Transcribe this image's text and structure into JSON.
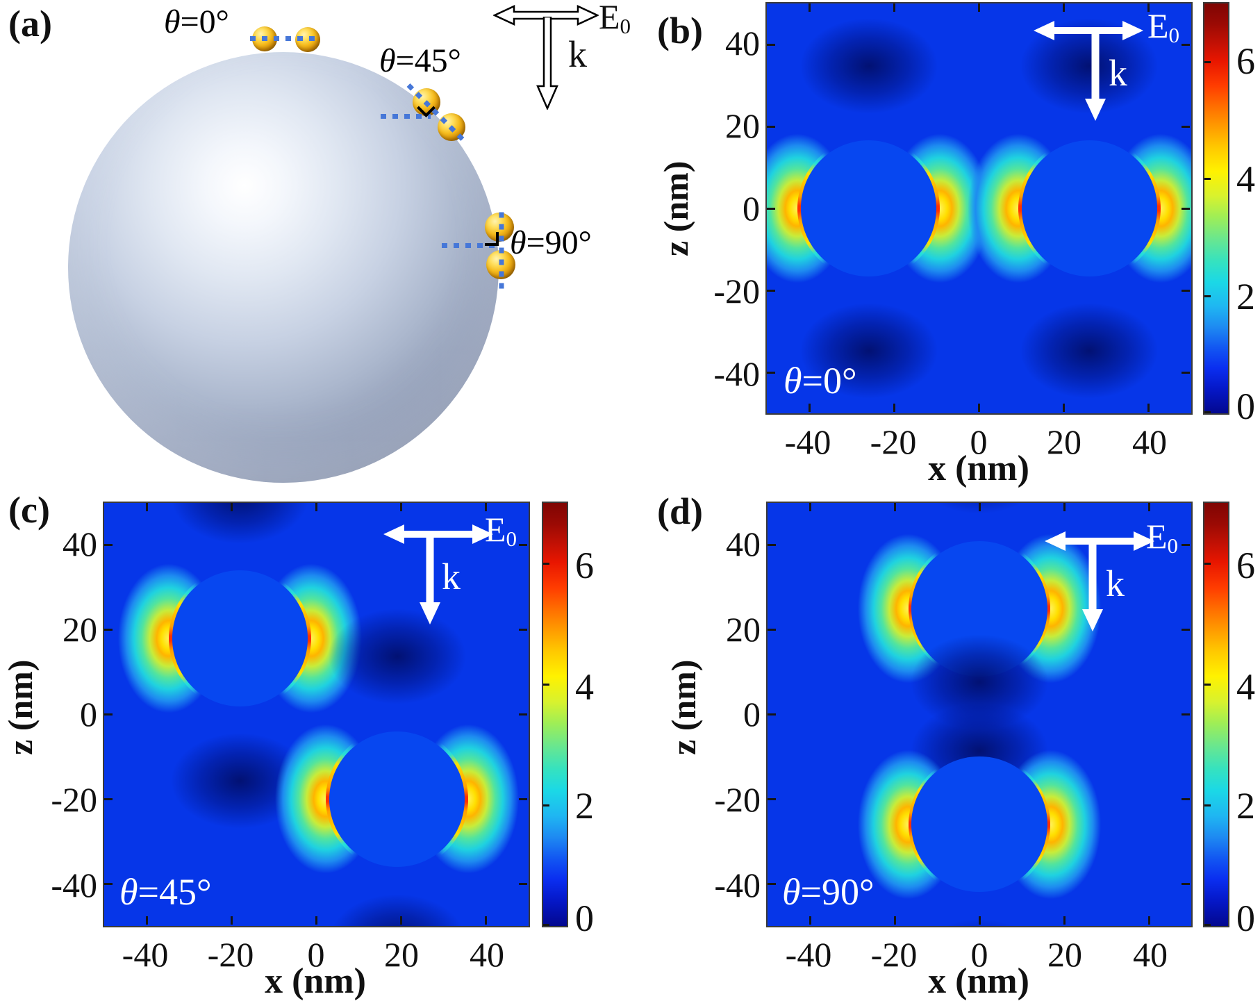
{
  "panel_a": {
    "label": "(a)",
    "annotations": {
      "theta0": {
        "sym": "θ",
        "rest": "=0°"
      },
      "theta45": {
        "sym": "θ",
        "rest": "=45°"
      },
      "theta90": {
        "sym": "θ",
        "rest": "=90°"
      }
    },
    "field_label": {
      "main": "E",
      "sub": "0"
    },
    "wave_label": "k"
  },
  "panels": {
    "b": {
      "label": "(b)",
      "annotation": {
        "sym": "θ",
        "rest": "=0°"
      },
      "xlabel": "x (nm)",
      "ylabel": "z (nm)",
      "x_ticks": [
        "-40",
        "-20",
        "0",
        "20",
        "40"
      ],
      "y_ticks": [
        "40",
        "20",
        "0",
        "-20",
        "-40"
      ],
      "colorbar_ticks": [
        "6",
        "4",
        "2",
        "0"
      ],
      "E": {
        "main": "E",
        "sub": "0"
      },
      "k": "k"
    },
    "c": {
      "label": "(c)",
      "annotation": {
        "sym": "θ",
        "rest": "=45°"
      },
      "xlabel": "x (nm)",
      "ylabel": "z (nm)",
      "x_ticks": [
        "-40",
        "-20",
        "0",
        "20",
        "40"
      ],
      "y_ticks": [
        "40",
        "20",
        "0",
        "-20",
        "-40"
      ],
      "colorbar_ticks": [
        "6",
        "4",
        "2",
        "0"
      ],
      "E": {
        "main": "E",
        "sub": "0"
      },
      "k": "k"
    },
    "d": {
      "label": "(d)",
      "annotation": {
        "sym": "θ",
        "rest": "=90°"
      },
      "xlabel": "x (nm)",
      "ylabel": "z (nm)",
      "x_ticks": [
        "-40",
        "-20",
        "0",
        "20",
        "40"
      ],
      "y_ticks": [
        "40",
        "20",
        "0",
        "-20",
        "-40"
      ],
      "colorbar_ticks": [
        "6",
        "4",
        "2",
        "0"
      ],
      "E": {
        "main": "E",
        "sub": "0"
      },
      "k": "k"
    }
  },
  "colors": {
    "heatmap_background": "#0636e8",
    "particle_interior": "#0747f0",
    "hotspot_yellow": "#ffe000",
    "hotspot_red": "#ff3000",
    "halo_cyan": "#1ed3e8",
    "shadow_navy": "#010e69",
    "gold_particle": "#f2bb1d",
    "microsphere_silver": "#c7d1e3",
    "dotted_guide_blue": "#4677d8",
    "annotation_white": "#ffffff"
  },
  "chart_data": [
    {
      "panel": "b",
      "type": "heatmap",
      "annotation": "θ=0°",
      "xlabel": "x (nm)",
      "ylabel": "z (nm)",
      "x_range": [
        -50,
        50
      ],
      "z_range": [
        -50,
        50
      ],
      "x_tick_vals": [
        -40,
        -20,
        0,
        20,
        40
      ],
      "z_tick_vals": [
        -40,
        -20,
        0,
        20,
        40
      ],
      "colorbar": {
        "range": [
          0,
          7
        ],
        "ticks": [
          0,
          2,
          4,
          6
        ],
        "colormap": "jet"
      },
      "particles": [
        {
          "x": -26,
          "z": 0,
          "r": 16
        },
        {
          "x": 26,
          "z": 0,
          "r": 16
        }
      ],
      "excitation": {
        "E_field": "E0 along +x",
        "wavevector": "k along -z"
      },
      "hotspots": "field enhancement up to ~7 on left/right flanks of each nanosphere, cyan halo in gap, dark shadows above/below"
    },
    {
      "panel": "c",
      "type": "heatmap",
      "annotation": "θ=45°",
      "xlabel": "x (nm)",
      "ylabel": "z (nm)",
      "x_range": [
        -50,
        50
      ],
      "z_range": [
        -50,
        50
      ],
      "x_tick_vals": [
        -40,
        -20,
        0,
        20,
        40
      ],
      "z_tick_vals": [
        -40,
        -20,
        0,
        20,
        40
      ],
      "colorbar": {
        "range": [
          0,
          7
        ],
        "ticks": [
          0,
          2,
          4,
          6
        ],
        "colormap": "jet"
      },
      "particles": [
        {
          "x": -18,
          "z": 18,
          "r": 16
        },
        {
          "x": 19,
          "z": -20,
          "r": 16
        }
      ],
      "excitation": {
        "E_field": "E0 along +x",
        "wavevector": "k along -z"
      },
      "hotspots": "field enhancement up to ~7 on left/right flanks of each nanosphere, dark shadows above/below"
    },
    {
      "panel": "d",
      "type": "heatmap",
      "annotation": "θ=90°",
      "xlabel": "x (nm)",
      "ylabel": "z (nm)",
      "x_range": [
        -50,
        50
      ],
      "z_range": [
        -50,
        50
      ],
      "x_tick_vals": [
        -40,
        -20,
        0,
        20,
        40
      ],
      "z_tick_vals": [
        -40,
        -20,
        0,
        20,
        40
      ],
      "colorbar": {
        "range": [
          0,
          7
        ],
        "ticks": [
          0,
          2,
          4,
          6
        ],
        "colormap": "jet"
      },
      "particles": [
        {
          "x": 0,
          "z": 25,
          "r": 16
        },
        {
          "x": 0,
          "z": -26,
          "r": 16
        }
      ],
      "excitation": {
        "E_field": "E0 along +x",
        "wavevector": "k along -z"
      },
      "hotspots": "field enhancement up to ~7 on left/right flanks of each nanosphere, dark region in gap between stacked spheres"
    }
  ]
}
